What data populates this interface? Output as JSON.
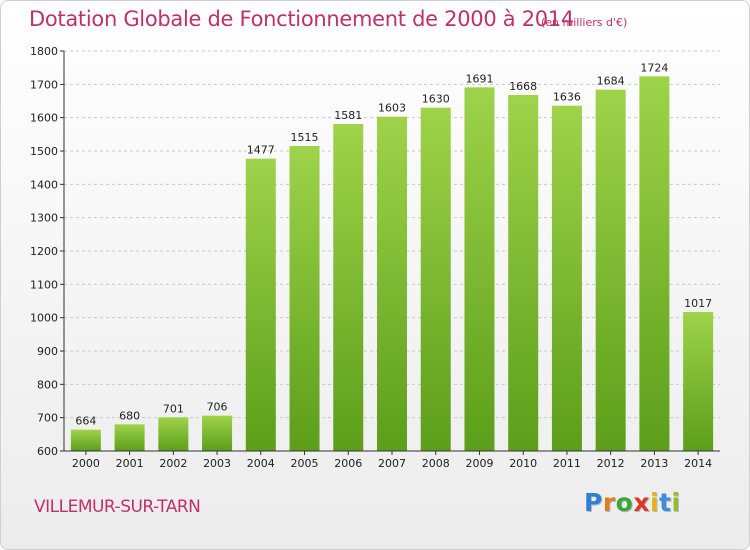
{
  "header": {
    "title": "Dotation Globale de Fonctionnement de 2000 à 2014",
    "subtitle": "(en milliers d'€)"
  },
  "footer": {
    "location": "VILLEMUR-SUR-TARN",
    "brand": {
      "letters": [
        "P",
        "r",
        "o",
        "x",
        "i",
        "t",
        "i"
      ],
      "colors": [
        "#2f7fd0",
        "#e07b1e",
        "#3aa63a",
        "#d83a2a",
        "#e0b21e",
        "#3a8fd8",
        "#8fbf2a"
      ]
    }
  },
  "colors": {
    "bar_top": "#9ed34a",
    "bar_bottom": "#5c9e1a",
    "grid": "#c8c8c8",
    "axis": "#333333"
  },
  "chart_data": {
    "type": "bar",
    "title": "Dotation Globale de Fonctionnement de 2000 à 2014",
    "subtitle": "(en milliers d'€)",
    "categories": [
      "2000",
      "2001",
      "2002",
      "2003",
      "2004",
      "2005",
      "2006",
      "2007",
      "2008",
      "2009",
      "2010",
      "2011",
      "2012",
      "2013",
      "2014"
    ],
    "values": [
      664,
      680,
      701,
      706,
      1477,
      1515,
      1581,
      1603,
      1630,
      1691,
      1668,
      1636,
      1684,
      1724,
      1017
    ],
    "ylim": [
      600,
      1800
    ],
    "yticks": [
      600,
      700,
      800,
      900,
      1000,
      1100,
      1200,
      1300,
      1400,
      1500,
      1600,
      1700,
      1800
    ],
    "grid": true,
    "data_labels": true
  }
}
